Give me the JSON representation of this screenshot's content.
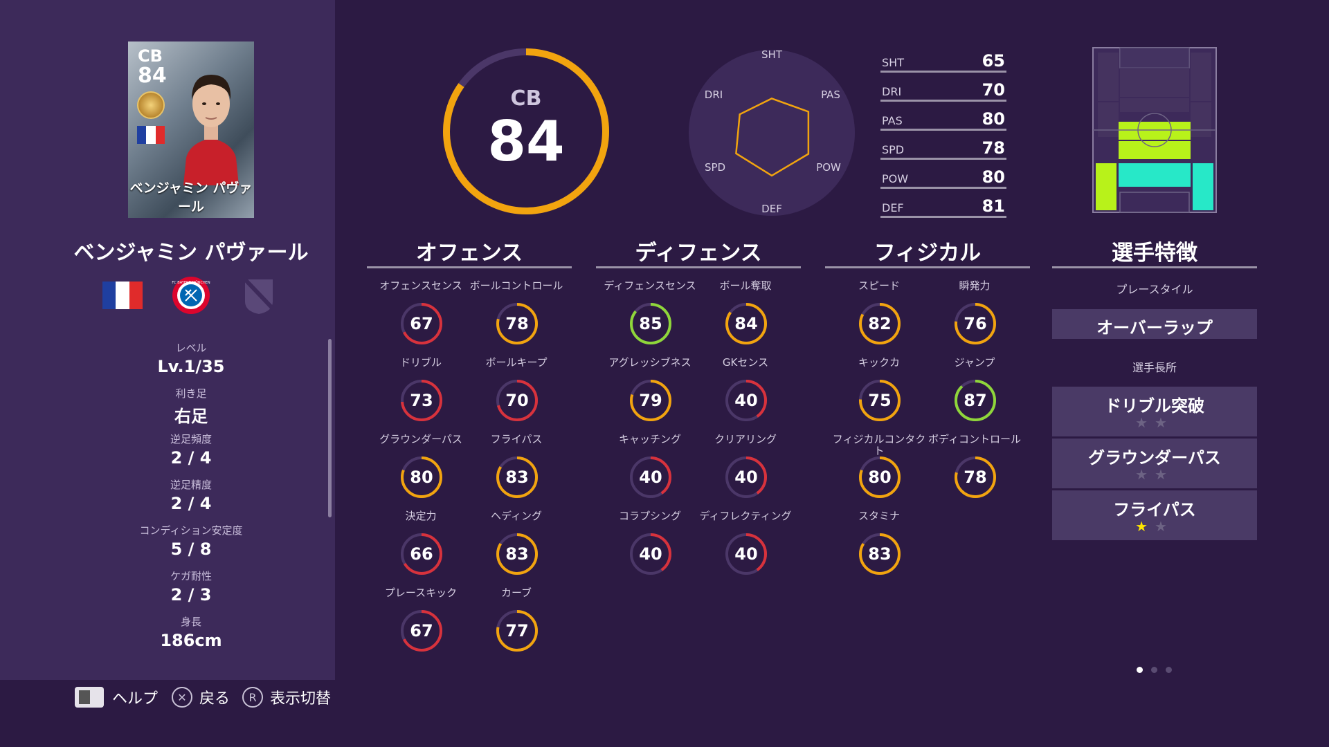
{
  "card": {
    "position": "CB",
    "overall": "84",
    "name": "ベンジャミン パヴァール"
  },
  "player": {
    "name": "ベンジャミン パヴァール",
    "info": [
      {
        "label": "レベル",
        "value": "Lv.1/35"
      },
      {
        "label": "利き足",
        "value": "右足"
      },
      {
        "label": "逆足頻度",
        "value": "2 / 4"
      },
      {
        "label": "逆足精度",
        "value": "2 / 4"
      },
      {
        "label": "コンディション安定度",
        "value": "5 / 8"
      },
      {
        "label": "ケガ耐性",
        "value": "2 / 3"
      },
      {
        "label": "身長",
        "value": "186cm"
      }
    ]
  },
  "club_badge_text": "FC BAYERN MÜNCHEN",
  "overall": {
    "position": "CB",
    "value": 84
  },
  "radar": {
    "labels": [
      "SHT",
      "PAS",
      "POW",
      "DEF",
      "SPD",
      "DRI"
    ],
    "values": [
      65,
      80,
      80,
      81,
      78,
      70
    ]
  },
  "summary_stats": [
    {
      "label": "SHT",
      "value": "65"
    },
    {
      "label": "DRI",
      "value": "70"
    },
    {
      "label": "PAS",
      "value": "80"
    },
    {
      "label": "SPD",
      "value": "78"
    },
    {
      "label": "POW",
      "value": "80"
    },
    {
      "label": "DEF",
      "value": "81"
    }
  ],
  "sections": [
    {
      "title": "オフェンス",
      "attributes": [
        {
          "label": "オフェンスセンス",
          "value": 67
        },
        {
          "label": "ボールコントロール",
          "value": 78
        },
        {
          "label": "ドリブル",
          "value": 73
        },
        {
          "label": "ボールキープ",
          "value": 70
        },
        {
          "label": "グラウンダーパス",
          "value": 80
        },
        {
          "label": "フライパス",
          "value": 83
        },
        {
          "label": "決定力",
          "value": 66
        },
        {
          "label": "ヘディング",
          "value": 83
        },
        {
          "label": "プレースキック",
          "value": 67
        },
        {
          "label": "カーブ",
          "value": 77
        }
      ]
    },
    {
      "title": "ディフェンス",
      "attributes": [
        {
          "label": "ディフェンスセンス",
          "value": 85
        },
        {
          "label": "ボール奪取",
          "value": 84
        },
        {
          "label": "アグレッシブネス",
          "value": 79
        },
        {
          "label": "GKセンス",
          "value": 40
        },
        {
          "label": "キャッチング",
          "value": 40
        },
        {
          "label": "クリアリング",
          "value": 40
        },
        {
          "label": "コラプシング",
          "value": 40
        },
        {
          "label": "ディフレクティング",
          "value": 40
        }
      ]
    },
    {
      "title": "フィジカル",
      "attributes": [
        {
          "label": "スピード",
          "value": 82
        },
        {
          "label": "瞬発力",
          "value": 76
        },
        {
          "label": "キックカ",
          "value": 75
        },
        {
          "label": "ジャンプ",
          "value": 87
        },
        {
          "label": "フィジカルコンタクト",
          "value": 80
        },
        {
          "label": "ボディコントロール",
          "value": 78
        },
        {
          "label": "スタミナ",
          "value": 83
        }
      ]
    }
  ],
  "features": {
    "title": "選手特徴",
    "playstyle_label": "プレースタイル",
    "playstyle": "オーバーラップ",
    "skills_label": "選手長所",
    "skills": [
      {
        "name": "ドリブル突破",
        "stars_filled": 0,
        "stars_total": 2
      },
      {
        "name": "グラウンダーパス",
        "stars_filled": 0,
        "stars_total": 2
      },
      {
        "name": "フライパス",
        "stars_filled": 1,
        "stars_total": 2
      }
    ]
  },
  "footer": [
    {
      "icon": "touchpad-icon",
      "label": "ヘルプ"
    },
    {
      "icon": "cross-button-icon",
      "glyph": "✕",
      "label": "戻る"
    },
    {
      "icon": "r-button-icon",
      "glyph": "R",
      "label": "表示切替"
    }
  ],
  "pagination": {
    "total": 3,
    "current": 0
  },
  "colors": {
    "background": "#2c1a43",
    "panel": "#3d2a5a",
    "ring_gold": "#f2a40f",
    "ring_green": "#8fd63a",
    "ring_red": "#d8323c",
    "ring_track": "#4b3768",
    "pitch_high": "#b8f21a",
    "pitch_mid": "#27e8c8",
    "star_on": "#ffe600",
    "star_off": "#6d6384"
  }
}
